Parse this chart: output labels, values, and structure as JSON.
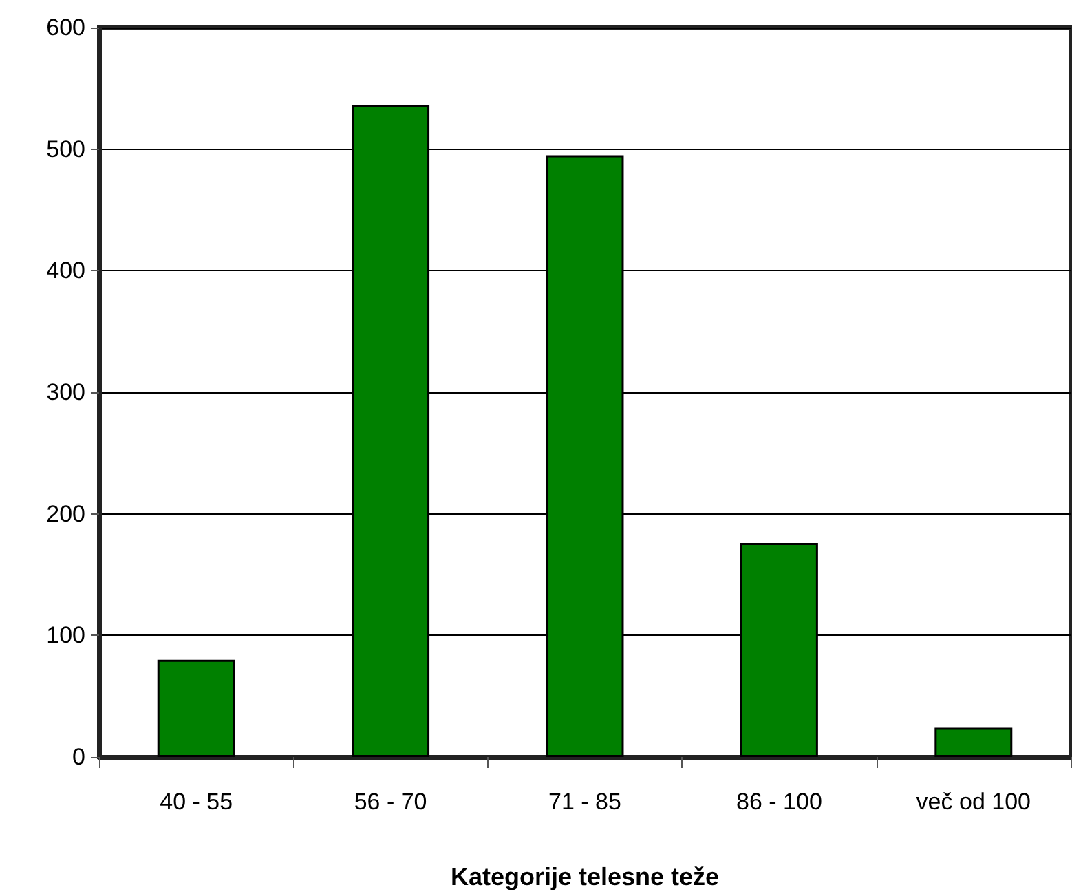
{
  "chart_data": {
    "type": "bar",
    "xlabel": "Kategorije telesne teže",
    "categories": [
      "40 - 55",
      "56 - 70",
      "71 - 85",
      "86 - 100",
      "več od 100"
    ],
    "values": [
      80,
      536,
      495,
      176,
      24
    ],
    "color": "#008000",
    "ylim": [
      0,
      600
    ],
    "yticks": [
      0,
      100,
      200,
      300,
      400,
      500,
      600
    ],
    "grid": "y"
  }
}
